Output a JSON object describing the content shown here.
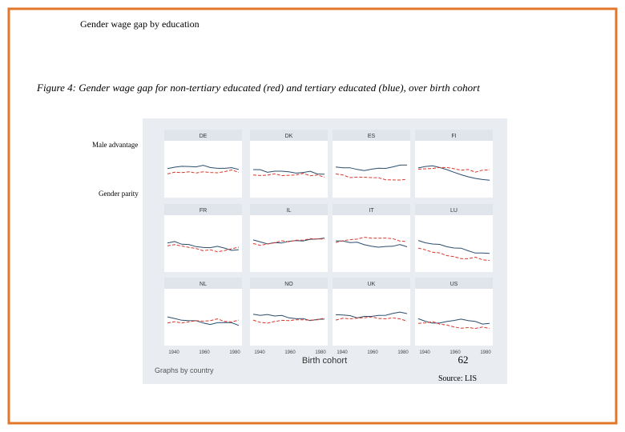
{
  "title": "Gender wage gap by education",
  "caption": "Figure 4: Gender wage gap for non-tertiary educated (red) and tertiary educated (blue), over birth cohort",
  "annotations": {
    "top": "Male advantage",
    "bottom": "Gender parity"
  },
  "figure": {
    "panels": [
      "DE",
      "DK",
      "ES",
      "FI",
      "FR",
      "IL",
      "IT",
      "LU",
      "NL",
      "NO",
      "UK",
      "US"
    ],
    "x_ticks": [
      "1940",
      "1960",
      "1980"
    ],
    "x_title": "Birth cohort",
    "note": "Graphs by country"
  },
  "page_number": "62",
  "source": "Source: LIS"
}
